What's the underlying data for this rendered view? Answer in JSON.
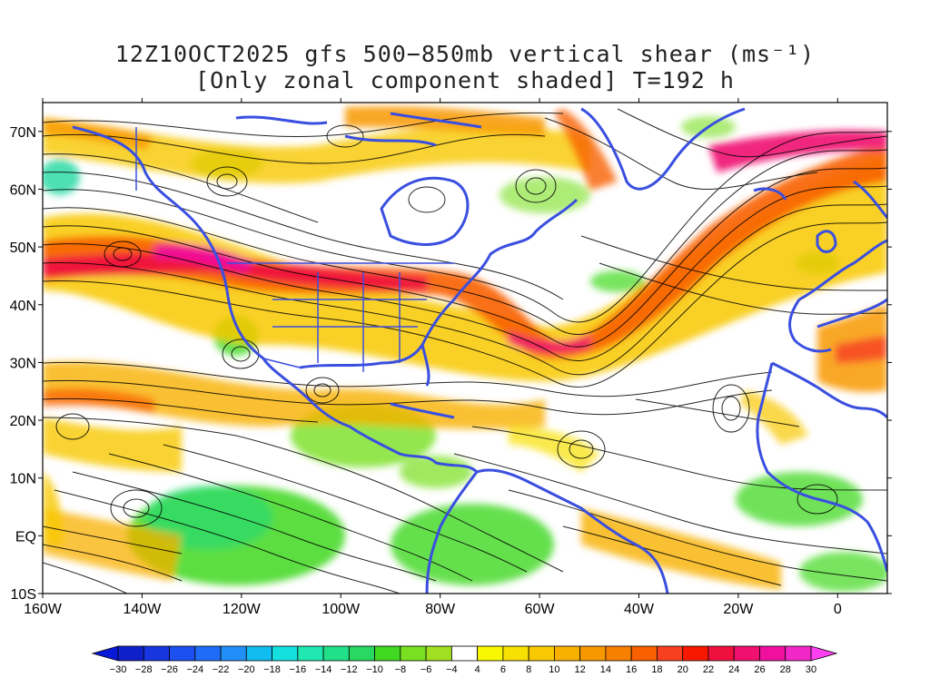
{
  "title": {
    "line1": "12Z10OCT2025 gfs 500−850mb vertical shear (ms⁻¹)",
    "line2": "[Only zonal component shaded] T=192 h"
  },
  "map": {
    "lon_range": [
      -160,
      10
    ],
    "lat_range": [
      -10,
      75
    ],
    "lat_ticks": [
      {
        "value": 70,
        "label": "70N"
      },
      {
        "value": 60,
        "label": "60N"
      },
      {
        "value": 50,
        "label": "50N"
      },
      {
        "value": 40,
        "label": "40N"
      },
      {
        "value": 30,
        "label": "30N"
      },
      {
        "value": 20,
        "label": "20N"
      },
      {
        "value": 10,
        "label": "10N"
      },
      {
        "value": 0,
        "label": "EQ"
      },
      {
        "value": -10,
        "label": "10S"
      }
    ],
    "lon_ticks": [
      {
        "value": -160,
        "label": "160W"
      },
      {
        "value": -140,
        "label": "140W"
      },
      {
        "value": -120,
        "label": "120W"
      },
      {
        "value": -100,
        "label": "100W"
      },
      {
        "value": -80,
        "label": "80W"
      },
      {
        "value": -60,
        "label": "60W"
      },
      {
        "value": -40,
        "label": "40W"
      },
      {
        "value": -20,
        "label": "20W"
      },
      {
        "value": 0,
        "label": "0"
      }
    ],
    "coastline_color": "#3a4fe0",
    "streamline_color": "#000000",
    "shading": "zonal shear component"
  },
  "colorbar": {
    "levels": [
      -30,
      -28,
      -26,
      -24,
      -22,
      -20,
      -18,
      -16,
      -14,
      -12,
      -10,
      -8,
      -6,
      -4,
      4,
      6,
      8,
      10,
      12,
      14,
      16,
      18,
      20,
      22,
      24,
      26,
      28,
      30
    ],
    "colors": [
      "#1020c8",
      "#1836e0",
      "#1c50f0",
      "#1e6cf8",
      "#2090f8",
      "#10bcf0",
      "#14e0e0",
      "#20e8b0",
      "#20e088",
      "#28d860",
      "#40d820",
      "#78e020",
      "#a0e020",
      "#ffffff",
      "#f8f800",
      "#f8e000",
      "#f8c800",
      "#f8b000",
      "#f89800",
      "#f88000",
      "#f86000",
      "#f84020",
      "#f81800",
      "#f01040",
      "#f01070",
      "#f010a0",
      "#f028c8"
    ],
    "under_color": "#0818d8",
    "over_color": "#ff40f0"
  }
}
